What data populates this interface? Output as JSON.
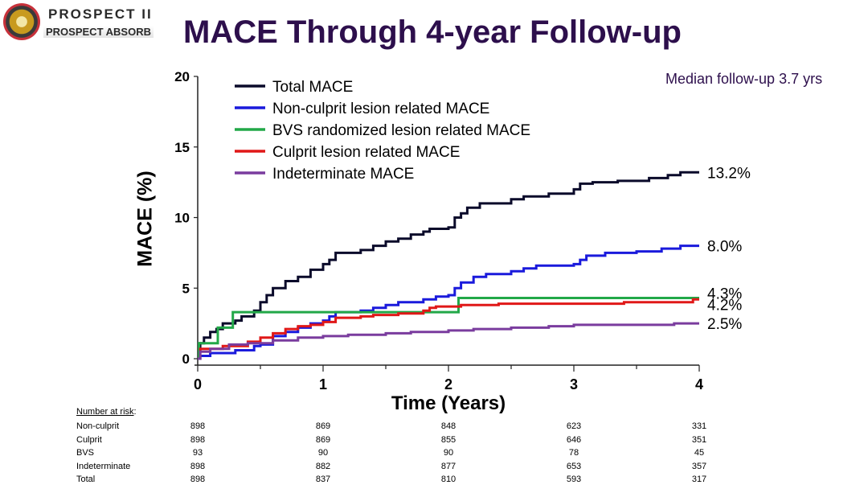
{
  "header": {
    "logo_line1": "PROSPECT II",
    "logo_line2": "PROSPECT ABSORB",
    "title": "MACE Through 4-year Follow-up",
    "note": "Median follow-up 3.7 yrs"
  },
  "colors": {
    "title": "#2d0f4c",
    "total": "#0a0a2a",
    "nonculprit": "#1a1adc",
    "bvs": "#22a848",
    "culprit": "#e01818",
    "indeterminate": "#7a3c9e"
  },
  "chart_data": {
    "type": "line",
    "xlabel": "Time (Years)",
    "ylabel": "MACE (%)",
    "xlim": [
      0,
      4
    ],
    "ylim": [
      0,
      20
    ],
    "xticks": [
      0,
      1,
      2,
      3,
      4
    ],
    "yticks": [
      0,
      5,
      10,
      15,
      20
    ],
    "legend_position": "top-left",
    "series": [
      {
        "name": "Total MACE",
        "color": "#0a0a2a",
        "end_label": "13.2%",
        "points": [
          [
            0,
            0
          ],
          [
            0.01,
            0.6
          ],
          [
            0.02,
            1.1
          ],
          [
            0.05,
            1.5
          ],
          [
            0.1,
            1.9
          ],
          [
            0.15,
            2.1
          ],
          [
            0.2,
            2.5
          ],
          [
            0.3,
            2.7
          ],
          [
            0.35,
            3.0
          ],
          [
            0.45,
            3.4
          ],
          [
            0.5,
            4.0
          ],
          [
            0.55,
            4.5
          ],
          [
            0.6,
            5.0
          ],
          [
            0.7,
            5.5
          ],
          [
            0.8,
            5.8
          ],
          [
            0.9,
            6.3
          ],
          [
            1.0,
            6.7
          ],
          [
            1.05,
            7.0
          ],
          [
            1.1,
            7.5
          ],
          [
            1.3,
            7.7
          ],
          [
            1.4,
            8.0
          ],
          [
            1.5,
            8.3
          ],
          [
            1.6,
            8.5
          ],
          [
            1.7,
            8.8
          ],
          [
            1.8,
            9.0
          ],
          [
            1.85,
            9.2
          ],
          [
            2.0,
            9.3
          ],
          [
            2.05,
            10.0
          ],
          [
            2.1,
            10.3
          ],
          [
            2.15,
            10.7
          ],
          [
            2.25,
            11.0
          ],
          [
            2.5,
            11.3
          ],
          [
            2.6,
            11.5
          ],
          [
            2.8,
            11.7
          ],
          [
            3.0,
            12.0
          ],
          [
            3.05,
            12.4
          ],
          [
            3.15,
            12.5
          ],
          [
            3.35,
            12.6
          ],
          [
            3.6,
            12.8
          ],
          [
            3.75,
            13.0
          ],
          [
            3.85,
            13.2
          ],
          [
            4.0,
            13.2
          ]
        ]
      },
      {
        "name": "Non-culprit lesion related MACE",
        "color": "#1a1adc",
        "end_label": "8.0%",
        "points": [
          [
            0,
            0
          ],
          [
            0.02,
            0.2
          ],
          [
            0.1,
            0.4
          ],
          [
            0.3,
            0.6
          ],
          [
            0.45,
            0.9
          ],
          [
            0.5,
            1.0
          ],
          [
            0.6,
            1.6
          ],
          [
            0.7,
            1.9
          ],
          [
            0.8,
            2.2
          ],
          [
            0.9,
            2.5
          ],
          [
            1.0,
            2.7
          ],
          [
            1.05,
            3.0
          ],
          [
            1.1,
            3.3
          ],
          [
            1.3,
            3.4
          ],
          [
            1.4,
            3.6
          ],
          [
            1.5,
            3.8
          ],
          [
            1.6,
            4.0
          ],
          [
            1.8,
            4.2
          ],
          [
            1.9,
            4.4
          ],
          [
            2.0,
            4.5
          ],
          [
            2.05,
            5.0
          ],
          [
            2.1,
            5.4
          ],
          [
            2.2,
            5.8
          ],
          [
            2.3,
            6.0
          ],
          [
            2.5,
            6.2
          ],
          [
            2.6,
            6.4
          ],
          [
            2.7,
            6.6
          ],
          [
            3.0,
            6.7
          ],
          [
            3.05,
            7.0
          ],
          [
            3.1,
            7.3
          ],
          [
            3.25,
            7.5
          ],
          [
            3.5,
            7.6
          ],
          [
            3.7,
            7.8
          ],
          [
            3.85,
            8.0
          ],
          [
            4.0,
            8.0
          ]
        ]
      },
      {
        "name": "BVS randomized lesion related MACE",
        "color": "#22a848",
        "end_label": "4.3%",
        "points": [
          [
            0,
            0
          ],
          [
            0.01,
            1.1
          ],
          [
            0.15,
            1.1
          ],
          [
            0.16,
            2.2
          ],
          [
            0.27,
            2.2
          ],
          [
            0.28,
            3.3
          ],
          [
            2.07,
            3.3
          ],
          [
            2.08,
            4.3
          ],
          [
            4.0,
            4.3
          ]
        ]
      },
      {
        "name": "Culprit lesion related MACE",
        "color": "#e01818",
        "end_label": "4.2%",
        "points": [
          [
            0,
            0
          ],
          [
            0.02,
            0.7
          ],
          [
            0.2,
            0.9
          ],
          [
            0.4,
            1.2
          ],
          [
            0.5,
            1.5
          ],
          [
            0.6,
            1.8
          ],
          [
            0.7,
            2.1
          ],
          [
            0.8,
            2.3
          ],
          [
            0.9,
            2.4
          ],
          [
            1.0,
            2.6
          ],
          [
            1.1,
            2.9
          ],
          [
            1.3,
            3.0
          ],
          [
            1.4,
            3.1
          ],
          [
            1.6,
            3.2
          ],
          [
            1.8,
            3.4
          ],
          [
            1.85,
            3.6
          ],
          [
            1.9,
            3.7
          ],
          [
            2.1,
            3.8
          ],
          [
            2.4,
            3.9
          ],
          [
            2.6,
            3.9
          ],
          [
            3.0,
            3.9
          ],
          [
            3.4,
            4.0
          ],
          [
            3.8,
            4.0
          ],
          [
            3.95,
            4.2
          ],
          [
            4.0,
            4.2
          ]
        ]
      },
      {
        "name": "Indeterminate MACE",
        "color": "#7a3c9e",
        "end_label": "2.5%",
        "points": [
          [
            0,
            0
          ],
          [
            0.02,
            0.5
          ],
          [
            0.1,
            0.7
          ],
          [
            0.25,
            1.0
          ],
          [
            0.4,
            1.1
          ],
          [
            0.6,
            1.3
          ],
          [
            0.8,
            1.5
          ],
          [
            1.0,
            1.6
          ],
          [
            1.2,
            1.7
          ],
          [
            1.5,
            1.8
          ],
          [
            1.7,
            1.9
          ],
          [
            2.0,
            2.0
          ],
          [
            2.2,
            2.1
          ],
          [
            2.5,
            2.2
          ],
          [
            2.8,
            2.3
          ],
          [
            3.0,
            2.4
          ],
          [
            3.4,
            2.4
          ],
          [
            3.8,
            2.5
          ],
          [
            4.0,
            2.5
          ]
        ]
      }
    ],
    "number_at_risk": {
      "title": "Number at risk",
      "rows": [
        {
          "label": "Non-culprit",
          "values": [
            898,
            869,
            848,
            623,
            331
          ]
        },
        {
          "label": "Culprit",
          "values": [
            898,
            869,
            855,
            646,
            351
          ]
        },
        {
          "label": "BVS",
          "values": [
            93,
            90,
            90,
            78,
            45
          ]
        },
        {
          "label": "Indeterminate",
          "values": [
            898,
            882,
            877,
            653,
            357
          ]
        },
        {
          "label": "Total",
          "values": [
            898,
            837,
            810,
            593,
            317
          ]
        }
      ]
    }
  }
}
